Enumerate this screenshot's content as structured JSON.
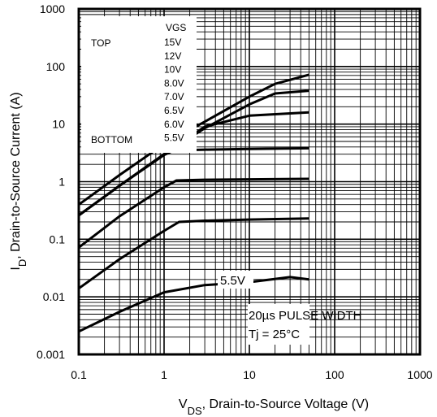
{
  "chart_data": {
    "type": "line",
    "x_scale": "log",
    "y_scale": "log",
    "xlim": [
      0.1,
      1000
    ],
    "ylim": [
      0.001,
      1000
    ],
    "grid": true,
    "x_ticks": [
      "0.1",
      "1",
      "10",
      "100",
      "1000"
    ],
    "y_ticks": [
      "1000",
      "100",
      "10",
      "1",
      "0.1",
      "0.01",
      "0.001"
    ],
    "xlabel": {
      "main": "V",
      "sub": "DS",
      "rest": ", Drain-to-Source Voltage (V)"
    },
    "ylabel": {
      "main": "I",
      "sub": "D",
      "rest": ", Drain-to-Source Current (A)"
    },
    "legend": {
      "header": "VGS",
      "top_label": "TOP",
      "bottom_label": "BOTTOM",
      "entries": [
        "15V",
        "12V",
        "10V",
        "8.0V",
        "7.0V",
        "6.5V",
        "6.0V",
        "5.5V"
      ]
    },
    "annotations": {
      "curve_label": "5.5V",
      "pulse": "20µs PULSE WIDTH",
      "temp": "Tj = 25°C"
    },
    "series": [
      {
        "x": [
          0.1,
          0.3,
          1,
          3,
          10,
          20,
          50
        ],
        "y": [
          0.4,
          1.3,
          4.5,
          11,
          30,
          50,
          72
        ]
      },
      {
        "x": [
          0.1,
          0.3,
          1,
          3,
          10,
          20,
          50
        ],
        "y": [
          0.26,
          0.85,
          3,
          8.5,
          22,
          34,
          38
        ]
      },
      {
        "x": [
          0.1,
          0.3,
          1,
          2,
          3,
          10,
          50
        ],
        "y": [
          0.26,
          0.85,
          3,
          6,
          9,
          14,
          16
        ]
      },
      {
        "x": [
          0.1,
          0.3,
          1,
          1.3,
          3,
          10,
          50
        ],
        "y": [
          0.26,
          0.85,
          2.9,
          3.5,
          3.6,
          3.7,
          3.8
        ]
      },
      {
        "x": [
          0.1,
          0.3,
          1,
          1.4,
          3,
          10,
          50
        ],
        "y": [
          0.072,
          0.25,
          0.8,
          1.05,
          1.08,
          1.1,
          1.12
        ]
      },
      {
        "x": [
          0.1,
          0.3,
          1,
          1.5,
          3,
          10,
          50
        ],
        "y": [
          0.014,
          0.045,
          0.14,
          0.2,
          0.21,
          0.22,
          0.23
        ]
      },
      {
        "x": [
          0.1,
          0.3,
          1,
          3,
          10,
          30,
          50
        ],
        "y": [
          0.0025,
          0.0055,
          0.012,
          0.016,
          0.018,
          0.022,
          0.02
        ]
      }
    ]
  }
}
